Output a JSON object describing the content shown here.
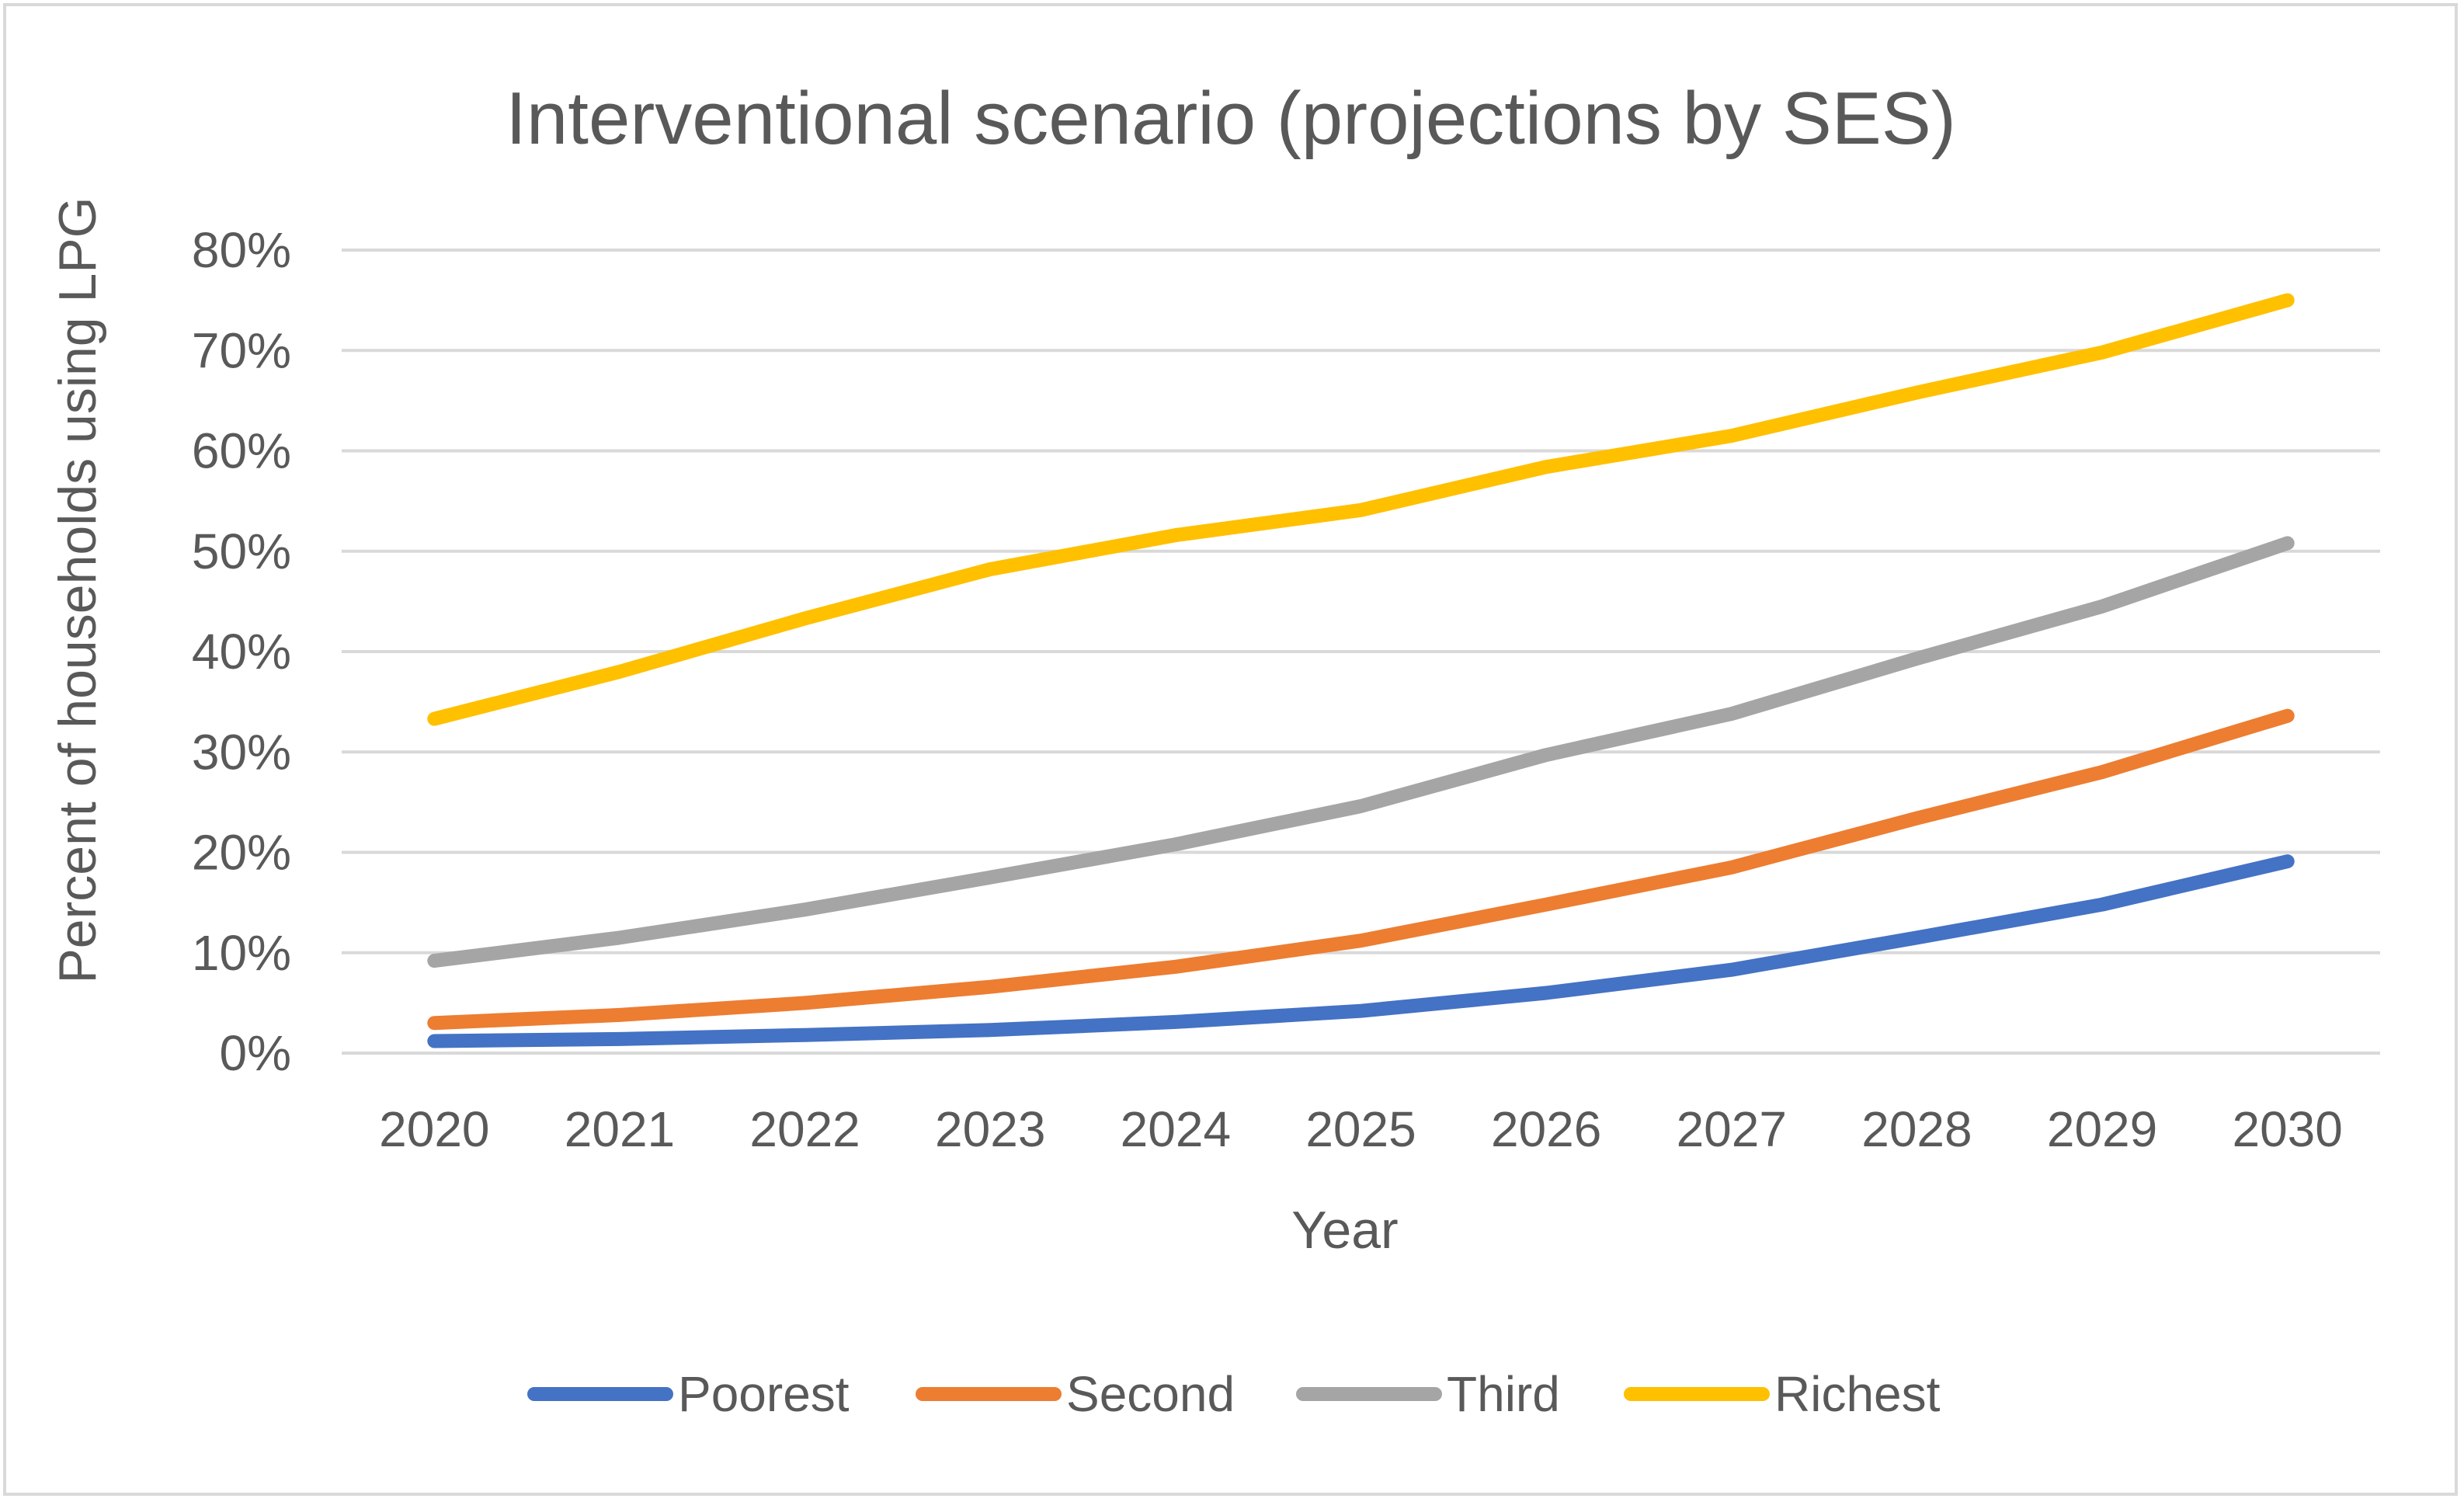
{
  "chart_data": {
    "type": "line",
    "title": "Interventional scenario (projections by SES)",
    "xlabel": "Year",
    "ylabel": "Percent of households using LPG",
    "categories": [
      "2020",
      "2021",
      "2022",
      "2023",
      "2024",
      "2025",
      "2026",
      "2027",
      "2028",
      "2029",
      "2030"
    ],
    "ylim": [
      0,
      0.8
    ],
    "yticks": [
      0,
      0.1,
      0.2,
      0.3,
      0.4,
      0.5,
      0.6,
      0.7,
      0.8
    ],
    "ytick_labels": [
      "0%",
      "10%",
      "20%",
      "30%",
      "40%",
      "50%",
      "60%",
      "70%",
      "80%"
    ],
    "grid": true,
    "legend_position": "bottom",
    "series": [
      {
        "name": "Poorest",
        "color": "#4472C4",
        "values": [
          0.012,
          0.014,
          0.018,
          0.023,
          0.031,
          0.042,
          0.06,
          0.083,
          0.115,
          0.148,
          0.191
        ]
      },
      {
        "name": "Second",
        "color": "#ED7D31",
        "values": [
          0.03,
          0.038,
          0.05,
          0.066,
          0.086,
          0.112,
          0.148,
          0.185,
          0.234,
          0.28,
          0.336
        ]
      },
      {
        "name": "Third",
        "color": "#A5A5A5",
        "values": [
          0.092,
          0.115,
          0.143,
          0.175,
          0.208,
          0.246,
          0.297,
          0.338,
          0.393,
          0.445,
          0.508
        ]
      },
      {
        "name": "Richest",
        "color": "#FFC000",
        "values": [
          0.333,
          0.38,
          0.433,
          0.482,
          0.516,
          0.541,
          0.584,
          0.615,
          0.658,
          0.698,
          0.75
        ]
      }
    ]
  }
}
